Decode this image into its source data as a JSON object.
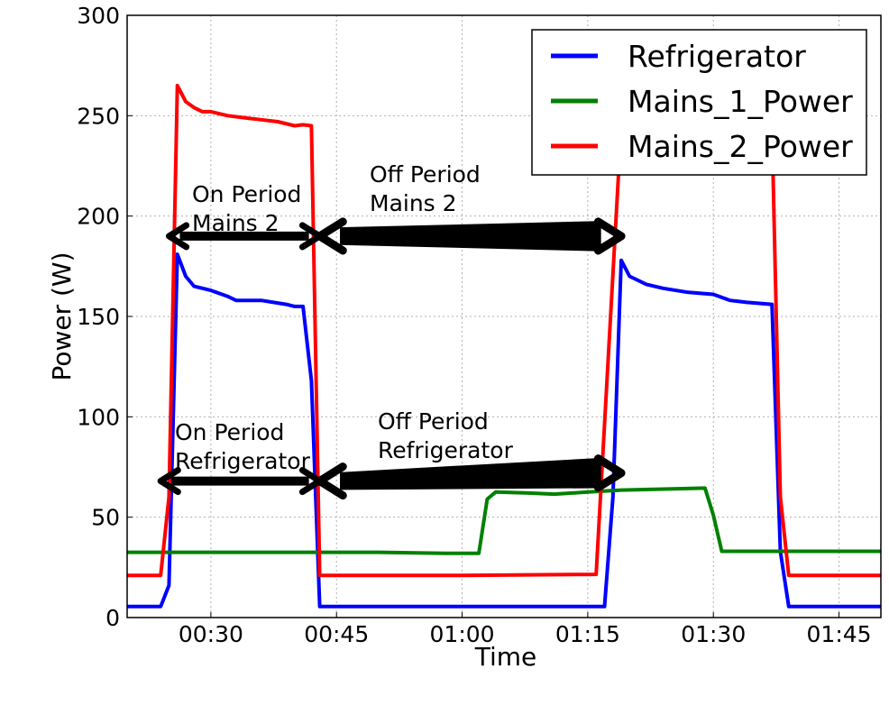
{
  "chart_data": {
    "type": "line",
    "title": "",
    "xlabel": "Time",
    "ylabel": "Power (W)",
    "xlim": [
      "00:20",
      "01:50"
    ],
    "ylim": [
      0,
      300
    ],
    "xticks": [
      "00:30",
      "00:45",
      "01:00",
      "01:15",
      "01:30",
      "01:45"
    ],
    "yticks": [
      0,
      50,
      100,
      150,
      200,
      250,
      300
    ],
    "grid": true,
    "legend_position": "top-right",
    "series": [
      {
        "name": "Refrigerator",
        "color": "#0000ff",
        "points": [
          [
            "00:20",
            5.5
          ],
          [
            "00:24",
            5.5
          ],
          [
            "00:25",
            16
          ],
          [
            "00:26",
            181
          ],
          [
            "00:27",
            170
          ],
          [
            "00:28",
            165
          ],
          [
            "00:30",
            163
          ],
          [
            "00:32",
            160
          ],
          [
            "00:33",
            158
          ],
          [
            "00:36",
            158
          ],
          [
            "00:39",
            156
          ],
          [
            "00:40",
            155
          ],
          [
            "00:41",
            155
          ],
          [
            "00:42",
            118
          ],
          [
            "00:43",
            5.5
          ],
          [
            "01:17",
            5.5
          ],
          [
            "01:18",
            60
          ],
          [
            "01:19",
            178
          ],
          [
            "01:20",
            170
          ],
          [
            "01:22",
            166
          ],
          [
            "01:24",
            164
          ],
          [
            "01:27",
            162
          ],
          [
            "01:30",
            161
          ],
          [
            "01:32",
            158
          ],
          [
            "01:34",
            157
          ],
          [
            "01:37",
            156
          ],
          [
            "01:38",
            33
          ],
          [
            "01:39",
            5.5
          ],
          [
            "01:50",
            5.5
          ]
        ]
      },
      {
        "name": "Mains_1_Power",
        "color": "#008000",
        "points": [
          [
            "00:20",
            32.5
          ],
          [
            "00:30",
            32.5
          ],
          [
            "00:40",
            32.5
          ],
          [
            "00:50",
            32.5
          ],
          [
            "00:58",
            32
          ],
          [
            "01:02",
            32
          ],
          [
            "01:03",
            59
          ],
          [
            "01:04",
            62.5
          ],
          [
            "01:08",
            62
          ],
          [
            "01:11",
            61.5
          ],
          [
            "01:15",
            62.5
          ],
          [
            "01:19",
            63.5
          ],
          [
            "01:24",
            64
          ],
          [
            "01:29",
            64.5
          ],
          [
            "01:30",
            51
          ],
          [
            "01:31",
            33
          ],
          [
            "01:40",
            33
          ],
          [
            "01:50",
            33
          ]
        ]
      },
      {
        "name": "Mains_2_Power",
        "color": "#ff0000",
        "points": [
          [
            "00:20",
            21
          ],
          [
            "00:24",
            21
          ],
          [
            "00:25",
            60
          ],
          [
            "00:26",
            265
          ],
          [
            "00:27",
            257
          ],
          [
            "00:28",
            254
          ],
          [
            "00:29",
            252
          ],
          [
            "00:30",
            252
          ],
          [
            "00:32",
            250
          ],
          [
            "00:34",
            249
          ],
          [
            "00:36",
            248
          ],
          [
            "00:38",
            247
          ],
          [
            "00:40",
            245
          ],
          [
            "00:41",
            245.5
          ],
          [
            "00:42",
            245
          ],
          [
            "00:43",
            21
          ],
          [
            "01:00",
            21
          ],
          [
            "01:16",
            21.5
          ],
          [
            "01:19",
            245
          ],
          [
            "01:37",
            245
          ],
          [
            "01:38",
            60
          ],
          [
            "01:39",
            21
          ],
          [
            "01:50",
            21
          ]
        ]
      }
    ],
    "annotations": [
      {
        "lines": [
          "On Period",
          "Mains 2"
        ],
        "arrow": {
          "from": [
            "00:25",
            190
          ],
          "to": [
            "00:43",
            190
          ]
        }
      },
      {
        "lines": [
          "Off Period",
          "Mains 2"
        ],
        "arrow": {
          "from": [
            "00:43",
            190
          ],
          "to": [
            "01:19",
            190
          ]
        }
      },
      {
        "lines": [
          "On  Period",
          "Refrigerator"
        ],
        "arrow": {
          "from": [
            "00:24",
            68
          ],
          "to": [
            "00:43",
            68
          ]
        }
      },
      {
        "lines": [
          "Off Period",
          "Refrigerator"
        ],
        "arrow": {
          "from": [
            "00:43",
            68
          ],
          "to": [
            "01:19",
            72
          ]
        }
      }
    ]
  }
}
